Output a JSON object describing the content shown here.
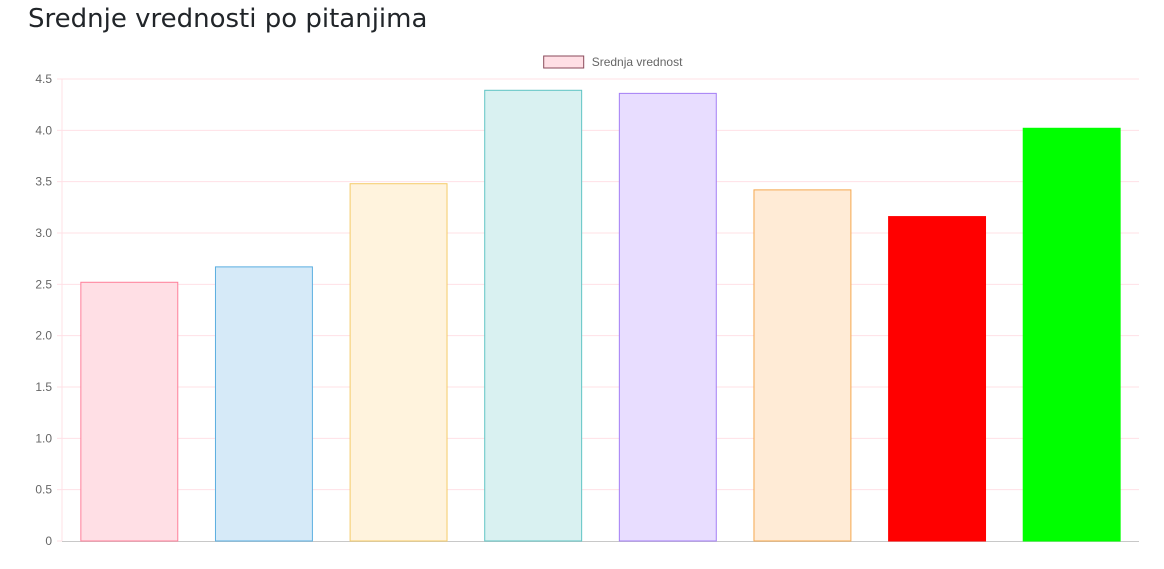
{
  "page": {
    "title": "Srednje vrednosti po pitanjima"
  },
  "chart_data": {
    "type": "bar",
    "title": "",
    "xlabel": "",
    "ylabel": "",
    "ylim": [
      0,
      4.5
    ],
    "y_ticks": [
      "0",
      "0.5",
      "1.0",
      "1.5",
      "2.0",
      "2.5",
      "3.0",
      "3.5",
      "4.0",
      "4.5"
    ],
    "y_tick_values": [
      0,
      0.5,
      1.0,
      1.5,
      2.0,
      2.5,
      3.0,
      3.5,
      4.0,
      4.5
    ],
    "grid": true,
    "grid_color": "#ffe0e6",
    "legend": {
      "position": "top",
      "entries": [
        "Srednja vrednost"
      ]
    },
    "series": [
      {
        "name": "Srednja vrednost",
        "values": [
          2.52,
          2.67,
          3.48,
          4.39,
          4.36,
          3.42,
          3.16,
          4.02
        ],
        "colors": [
          "#ffdfe5",
          "#d6eaf8",
          "#fff3dd",
          "#d9f1f1",
          "#e8ddff",
          "#ffebd6",
          "#ff0000",
          "#00ff00"
        ],
        "border_colors": [
          "#ff7f9a",
          "#5aaee0",
          "#f5cb68",
          "#5fc4c4",
          "#a37ef5",
          "#f5a84e",
          "#ff0000",
          "#00ff00"
        ]
      }
    ]
  }
}
